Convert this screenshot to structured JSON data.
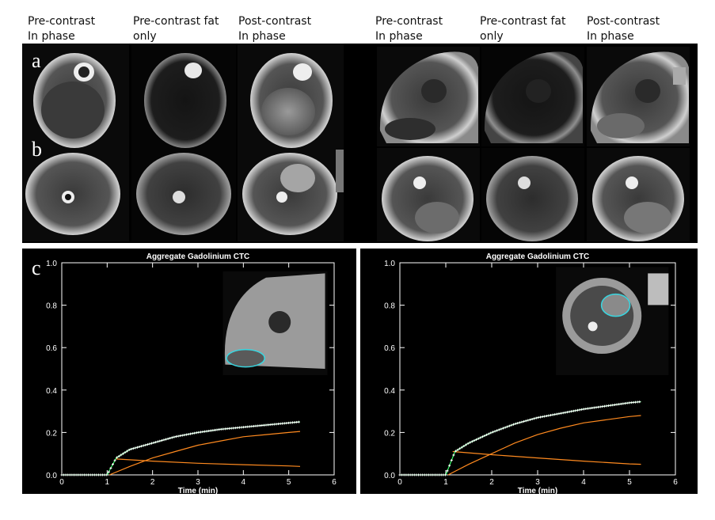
{
  "figure": {
    "column_labels": [
      "Pre-contrast\nIn phase",
      "Pre-contrast fat\nonly",
      "Post-contrast\nIn phase",
      "Pre-contrast\nIn phase",
      "Pre-contrast fat\nonly",
      "Post-contrast\nIn phase"
    ],
    "row_labels": {
      "a": "a",
      "b": "b",
      "c": "c"
    },
    "colors": {
      "background": "#000000",
      "axis": "#ffffff",
      "data_points": "#ffffff",
      "fit_total": "#33ff66",
      "fit_component": "#ff8a1f",
      "roi": "#38d6e0"
    }
  },
  "chart_data": [
    {
      "type": "scatter",
      "title": "Aggregate Gadolinium CTC",
      "xlabel": "Time (min)",
      "ylabel": "",
      "xlim": [
        0,
        6
      ],
      "ylim": [
        0,
        1.0
      ],
      "x_ticks": [
        "0",
        "1",
        "2",
        "3",
        "4",
        "5",
        "6"
      ],
      "y_ticks": [
        "0.0",
        "0.2",
        "0.4",
        "0.6",
        "0.8",
        "1.0"
      ],
      "onset": 1.05,
      "end_time": 5.25,
      "series": [
        {
          "values_at": [
            [
              0,
              0.0
            ],
            [
              1.0,
              0.0
            ],
            [
              1.2,
              0.08
            ],
            [
              1.5,
              0.12
            ],
            [
              2.0,
              0.15
            ],
            [
              2.5,
              0.18
            ],
            [
              3.0,
              0.2
            ],
            [
              3.5,
              0.215
            ],
            [
              4.0,
              0.225
            ],
            [
              4.5,
              0.235
            ],
            [
              5.0,
              0.245
            ],
            [
              5.25,
              0.25
            ]
          ]
        },
        {
          "values_at": [
            [
              1.05,
              0.0
            ],
            [
              1.5,
              0.04
            ],
            [
              2.0,
              0.08
            ],
            [
              2.5,
              0.11
            ],
            [
              3.0,
              0.14
            ],
            [
              3.5,
              0.16
            ],
            [
              4.0,
              0.18
            ],
            [
              4.5,
              0.19
            ],
            [
              5.0,
              0.2
            ],
            [
              5.25,
              0.205
            ]
          ]
        },
        {
          "values_at": [
            [
              1.2,
              0.075
            ],
            [
              2.0,
              0.065
            ],
            [
              3.0,
              0.055
            ],
            [
              4.0,
              0.048
            ],
            [
              5.0,
              0.042
            ],
            [
              5.25,
              0.04
            ]
          ]
        }
      ]
    },
    {
      "type": "scatter",
      "title": "Aggregate Gadolinium CTC",
      "xlabel": "Time (min)",
      "ylabel": "",
      "xlim": [
        0,
        6
      ],
      "ylim": [
        0,
        1.0
      ],
      "x_ticks": [
        "0",
        "1",
        "2",
        "3",
        "4",
        "5",
        "6"
      ],
      "y_ticks": [
        "0.0",
        "0.2",
        "0.4",
        "0.6",
        "0.8",
        "1.0"
      ],
      "onset": 1.05,
      "end_time": 5.25,
      "series": [
        {
          "values_at": [
            [
              0,
              0.0
            ],
            [
              1.0,
              0.0
            ],
            [
              1.2,
              0.11
            ],
            [
              1.5,
              0.15
            ],
            [
              2.0,
              0.2
            ],
            [
              2.5,
              0.24
            ],
            [
              3.0,
              0.27
            ],
            [
              3.5,
              0.29
            ],
            [
              4.0,
              0.31
            ],
            [
              4.5,
              0.325
            ],
            [
              5.0,
              0.34
            ],
            [
              5.25,
              0.345
            ]
          ]
        },
        {
          "values_at": [
            [
              1.05,
              0.0
            ],
            [
              1.5,
              0.05
            ],
            [
              2.0,
              0.1
            ],
            [
              2.5,
              0.15
            ],
            [
              3.0,
              0.19
            ],
            [
              3.5,
              0.22
            ],
            [
              4.0,
              0.245
            ],
            [
              4.5,
              0.26
            ],
            [
              5.0,
              0.275
            ],
            [
              5.25,
              0.28
            ]
          ]
        },
        {
          "values_at": [
            [
              1.15,
              0.11
            ],
            [
              2.0,
              0.095
            ],
            [
              3.0,
              0.08
            ],
            [
              4.0,
              0.065
            ],
            [
              5.0,
              0.052
            ],
            [
              5.25,
              0.05
            ]
          ]
        }
      ]
    }
  ]
}
